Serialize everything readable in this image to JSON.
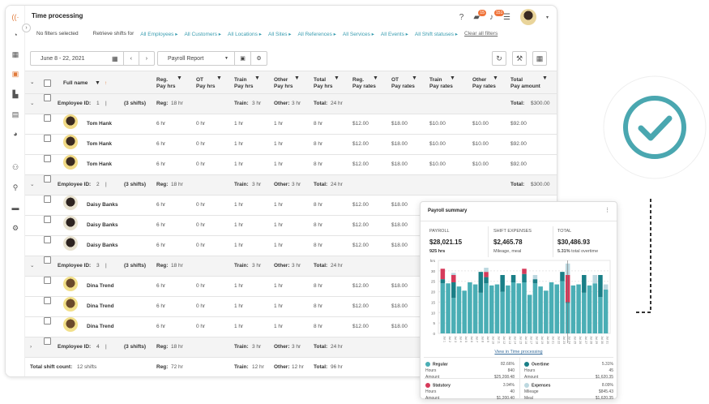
{
  "header": {
    "title": "Time processing",
    "chat_badge": "15",
    "bell_badge": "151"
  },
  "filters": {
    "no_filters": "No filters selected",
    "retrieve": "Retrieve shifts for",
    "links": [
      "All Employees ▸",
      "All Customers ▸",
      "All Locations ▸",
      "All Sites ▸",
      "All References ▸",
      "All Services ▸",
      "All Events ▸",
      "All Shift statuses ▸"
    ],
    "clear": "Clear all filters"
  },
  "toolbar": {
    "date_range": "June 8 - 22, 2021",
    "report": "Payroll Report"
  },
  "table": {
    "columns": [
      "Full name",
      "Reg.\nPay hrs",
      "OT\nPay hrs",
      "Train\nPay hrs",
      "Other\nPay hrs",
      "Total\nPay hrs",
      "Reg.\nPay rates",
      "OT\nPay rates",
      "Train\nPay rates",
      "Other\nPay rates",
      "Total\nPay amount"
    ],
    "groups": [
      {
        "id": "1",
        "shifts": "(3 shifts)",
        "reg": "18 hr",
        "train": "3 hr",
        "other": "3 hr",
        "total": "24 hr",
        "amount": "$300.00",
        "expanded": true,
        "employee": "Tom Hank"
      },
      {
        "id": "2",
        "shifts": "(3 shifts)",
        "reg": "18 hr",
        "train": "3 hr",
        "other": "3 hr",
        "total": "24 hr",
        "amount": "$300.00",
        "expanded": true,
        "employee": "Daisy Banks"
      },
      {
        "id": "3",
        "shifts": "(3 shifts)",
        "reg": "18 hr",
        "train": "3 hr",
        "other": "3 hr",
        "total": "24 hr",
        "amount": "",
        "expanded": true,
        "employee": "Dina Trend"
      },
      {
        "id": "4",
        "shifts": "(3 shifts)",
        "reg": "18 hr",
        "train": "3 hr",
        "other": "3 hr",
        "total": "24 hr",
        "amount": "",
        "expanded": false,
        "employee": ""
      }
    ],
    "row_values": [
      "6 hr",
      "0 hr",
      "1 hr",
      "1 hr",
      "8 hr",
      "$12.00",
      "$18.00",
      "$10.00",
      "$10.00",
      "$92.00"
    ],
    "labels": {
      "employee_id": "Employee ID:",
      "reg": "Reg:",
      "train": "Train:",
      "other": "Other:",
      "total": "Total:"
    },
    "footer": {
      "label": "Total shift count:",
      "count": "12 shifts",
      "reg": "72 hr",
      "train": "12 hr",
      "other": "12 hr",
      "total": "96 hr"
    }
  },
  "summary": {
    "title": "Payroll summary",
    "payroll": {
      "label": "PAYROLL",
      "value": "$28,021.15",
      "sub": "925 hrs"
    },
    "expenses": {
      "label": "SHIFT EXPENSES",
      "value": "$2,465.78",
      "sub": "Mileage, meal"
    },
    "total": {
      "label": "TOTAL",
      "value": "$30,486.93",
      "pct": "5.31%",
      "sub": "total overtime"
    },
    "link": "View in Time processing",
    "legend": [
      {
        "name": "Regular",
        "pct": "82.66%",
        "r1": "Hours",
        "v1": "840",
        "r2": "Amount",
        "v2": "$25,208.48",
        "color": "#4aaeb5"
      },
      {
        "name": "Overtime",
        "pct": "5.31%",
        "r1": "Hours",
        "v1": "45",
        "r2": "Amount",
        "v2": "$1,620.35",
        "color": "#1a7f87"
      },
      {
        "name": "Statutory",
        "pct": "3.94%",
        "r1": "Hours",
        "v1": "40",
        "r2": "Amount",
        "v2": "$1,200.40",
        "color": "#d63a5a"
      },
      {
        "name": "Expenses",
        "pct": "8.09%",
        "r1": "Mileage",
        "v1": "$845.43",
        "r2": "Meal",
        "v2": "$1,620.35",
        "color": "#bcd8e0"
      }
    ]
  },
  "chart_data": {
    "type": "bar",
    "stacked": true,
    "ylabel": "hrs",
    "ylim": [
      0,
      35
    ],
    "yticks": [
      0,
      5,
      10,
      15,
      20,
      25,
      30
    ],
    "categories": [
      "Jul 1",
      "Jul 2",
      "Jul 3",
      "Jul 4",
      "Jul 5",
      "Jul 6",
      "Jul 7",
      "Jul 8",
      "Jul 9",
      "Jul 10",
      "Jul 11",
      "Jul 12",
      "Jul 13",
      "Jul 14",
      "Jul 15",
      "Jul 16",
      "Jul 17",
      "Jul 18",
      "Jul 19",
      "Jul 20",
      "Jul 21",
      "Jul 22",
      "Jul 23",
      "Jul 24",
      "Jul 25",
      "Jul 26",
      "Jul 27",
      "Jul 28",
      "Jul 29",
      "Jul 30",
      "Jul 31"
    ],
    "series": [
      {
        "name": "Regular",
        "color": "#4aaeb5",
        "values": [
          24,
          24,
          17,
          22.5,
          20.5,
          24.5,
          23.5,
          19.5,
          24,
          23,
          23.5,
          20,
          23,
          24.5,
          24,
          24.5,
          18.5,
          24,
          22.5,
          20.5,
          24.5,
          23.5,
          25,
          14.5,
          23,
          23.5,
          19.5,
          23,
          24,
          17.5,
          21
        ]
      },
      {
        "name": "Overtime",
        "color": "#1a7f87",
        "values": [
          2,
          0,
          7.5,
          0,
          0,
          0,
          0,
          10,
          3,
          0,
          0,
          8,
          0,
          3.5,
          0,
          4,
          0,
          2,
          0,
          0,
          0,
          0,
          4.5,
          0.5,
          0,
          0,
          8.5,
          0,
          0,
          10.5,
          0
        ]
      },
      {
        "name": "Statutory",
        "color": "#d63a5a",
        "values": [
          5,
          0,
          3.5,
          0,
          0,
          0,
          0,
          0,
          2.5,
          0,
          0,
          0,
          0,
          0,
          0,
          2.5,
          0,
          0,
          0,
          0,
          0,
          0,
          0,
          13,
          0,
          0,
          0,
          0,
          0,
          0,
          0
        ]
      },
      {
        "name": "Expenses",
        "color": "#bcd8e0",
        "values": [
          0,
          0,
          1,
          0,
          0,
          0,
          0,
          0,
          2,
          0,
          0,
          0,
          0,
          0,
          0,
          0,
          0,
          2,
          0,
          0,
          0,
          0,
          0,
          5.5,
          0,
          0,
          0,
          0,
          4,
          0,
          2.5
        ]
      }
    ],
    "grid": true
  },
  "colors": {
    "accent": "#3a9db0",
    "check": "#4aa7b0"
  }
}
